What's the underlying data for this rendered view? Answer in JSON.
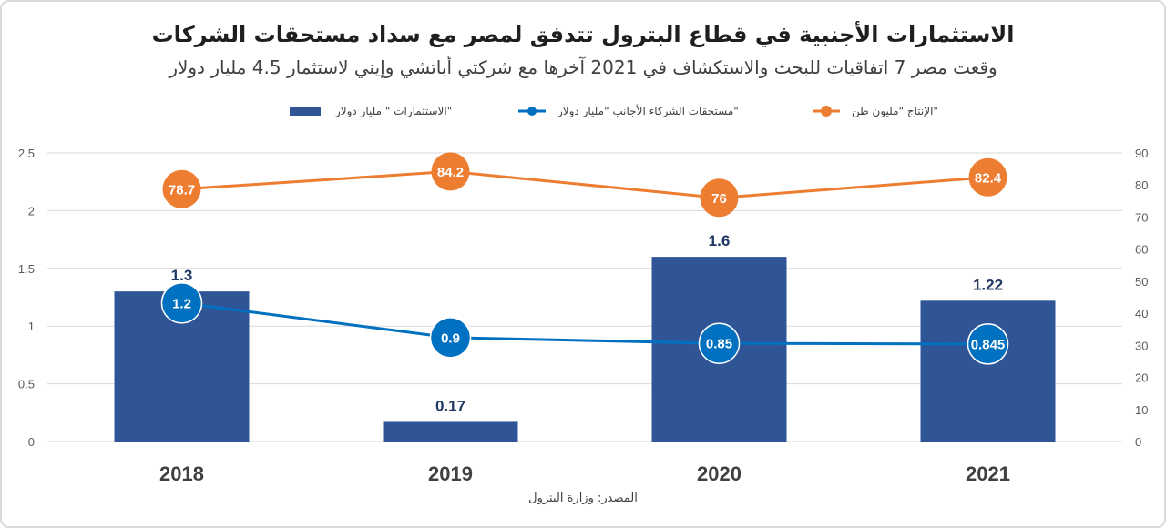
{
  "title": "الاستثمارات الأجنبية في قطاع البترول تتدفق لمصر مع سداد مستحقات الشركات",
  "subtitle": "وقعت مصر 7 اتفاقيات للبحث والاستكشاف في 2021 آخرها مع شركتي أباتشي وإيني لاستثمار 4.5 مليار دولار",
  "source": "المصدر: وزارة البترول",
  "colors": {
    "bars": "#2f5597",
    "blue_line": "#0070c0",
    "orange_line": "#ed7d31"
  },
  "chart_data": {
    "type": "bar",
    "categories": [
      "2018",
      "2019",
      "2020",
      "2021"
    ],
    "legend_position": "top",
    "grid": true,
    "y_left": {
      "ylim": [
        0,
        2.5
      ],
      "ticks": [
        "0",
        "0.5",
        "1",
        "1.5",
        "2",
        "2.5"
      ],
      "tick_values": [
        0,
        0.5,
        1,
        1.5,
        2,
        2.5
      ]
    },
    "y_right": {
      "ylim": [
        0,
        90
      ],
      "ticks": [
        "0",
        "10",
        "20",
        "30",
        "40",
        "50",
        "60",
        "70",
        "80",
        "90"
      ],
      "tick_values": [
        0,
        10,
        20,
        30,
        40,
        50,
        60,
        70,
        80,
        90
      ]
    },
    "series": [
      {
        "name": "الاستثمارات \" مليار دولار\"",
        "type": "bar",
        "axis": "left",
        "values": [
          1.3,
          0.17,
          1.6,
          1.22
        ],
        "labels": [
          "1.3",
          "0.17",
          "1.6",
          "1.22"
        ]
      },
      {
        "name": "مستحقات الشركاء الأجانب \"مليار دولار\"",
        "type": "line",
        "axis": "left",
        "values": [
          1.2,
          0.9,
          0.85,
          0.845
        ],
        "labels": [
          "1.2",
          "0.9",
          "0.85",
          "0.845"
        ]
      },
      {
        "name": "الإنتاج \"مليون طن\"",
        "type": "line",
        "axis": "right",
        "values": [
          78.7,
          84.2,
          76,
          82.4
        ],
        "labels": [
          "78.7",
          "84.2",
          "76",
          "82.4"
        ]
      }
    ]
  }
}
